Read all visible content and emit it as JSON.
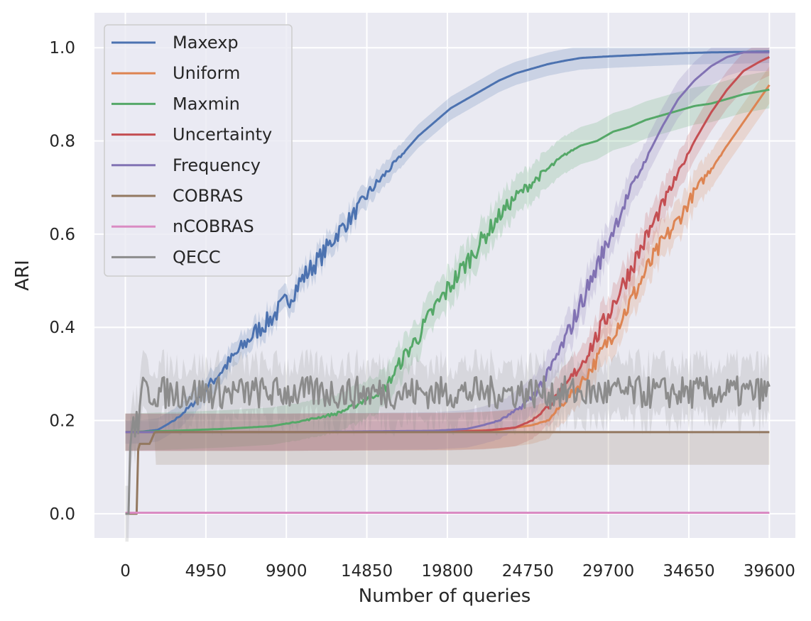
{
  "chart_data": {
    "type": "line",
    "xlabel": "Number of queries",
    "ylabel": "ARI",
    "xlim": [
      -1900,
      41200
    ],
    "ylim": [
      -0.052,
      1.075
    ],
    "xticks": [
      0,
      4950,
      9900,
      14850,
      19800,
      24750,
      29700,
      34650,
      39600
    ],
    "xtick_labels": [
      "0",
      "4950",
      "9900",
      "14850",
      "19800",
      "24750",
      "29700",
      "34650",
      "39600"
    ],
    "yticks": [
      0.0,
      0.2,
      0.4,
      0.6,
      0.8,
      1.0
    ],
    "ytick_labels": [
      "0.0",
      "0.2",
      "0.4",
      "0.6",
      "0.8",
      "1.0"
    ],
    "grid": true,
    "legend_position": "top-left",
    "background": "#eaeaf2",
    "series": [
      {
        "name": "Maxexp",
        "color": "#4c72b0",
        "x": [
          0,
          1000,
          2000,
          3000,
          4000,
          5000,
          6000,
          7000,
          8000,
          9000,
          10000,
          11000,
          12000,
          13000,
          14000,
          15000,
          16000,
          17000,
          18000,
          19000,
          20000,
          21000,
          22000,
          23000,
          24000,
          25000,
          26000,
          27000,
          28000,
          30000,
          32000,
          34000,
          36000,
          38000,
          39600
        ],
        "y": [
          0.175,
          0.176,
          0.18,
          0.2,
          0.23,
          0.27,
          0.31,
          0.35,
          0.39,
          0.42,
          0.46,
          0.51,
          0.55,
          0.6,
          0.64,
          0.69,
          0.73,
          0.77,
          0.81,
          0.84,
          0.87,
          0.89,
          0.91,
          0.93,
          0.945,
          0.955,
          0.965,
          0.972,
          0.978,
          0.982,
          0.985,
          0.988,
          0.99,
          0.991,
          0.992
        ],
        "band": 0.025
      },
      {
        "name": "Uniform",
        "color": "#dd8452",
        "x": [
          0,
          5000,
          10000,
          15000,
          20000,
          23000,
          25000,
          26000,
          27000,
          28000,
          29000,
          30000,
          31000,
          32000,
          33000,
          34000,
          35000,
          36000,
          37000,
          38000,
          39000,
          39600
        ],
        "y": [
          0.175,
          0.175,
          0.175,
          0.176,
          0.177,
          0.18,
          0.19,
          0.2,
          0.24,
          0.28,
          0.33,
          0.39,
          0.45,
          0.52,
          0.58,
          0.63,
          0.69,
          0.74,
          0.79,
          0.84,
          0.89,
          0.92
        ],
        "band": 0.04
      },
      {
        "name": "Maxmin",
        "color": "#55a868",
        "x": [
          0,
          3000,
          6000,
          9000,
          11000,
          13000,
          14000,
          15000,
          16000,
          16500,
          17000,
          18000,
          19000,
          20000,
          21000,
          22000,
          23000,
          24000,
          25000,
          26000,
          27000,
          28000,
          29000,
          30000,
          31000,
          32000,
          33000,
          34000,
          35000,
          36000,
          37000,
          38000,
          39600
        ],
        "y": [
          0.175,
          0.178,
          0.182,
          0.188,
          0.2,
          0.215,
          0.23,
          0.25,
          0.27,
          0.3,
          0.33,
          0.38,
          0.44,
          0.49,
          0.54,
          0.59,
          0.64,
          0.68,
          0.71,
          0.74,
          0.77,
          0.79,
          0.8,
          0.82,
          0.83,
          0.845,
          0.855,
          0.865,
          0.875,
          0.88,
          0.89,
          0.9,
          0.91
        ],
        "band": 0.04
      },
      {
        "name": "Uncertainty",
        "color": "#c44e52",
        "x": [
          0,
          10000,
          20000,
          22000,
          24000,
          25000,
          26000,
          27000,
          28000,
          29000,
          30000,
          31000,
          32000,
          33000,
          34000,
          35000,
          36000,
          37000,
          38000,
          39000,
          39600
        ],
        "y": [
          0.175,
          0.175,
          0.176,
          0.178,
          0.185,
          0.2,
          0.23,
          0.27,
          0.32,
          0.38,
          0.45,
          0.52,
          0.59,
          0.66,
          0.73,
          0.8,
          0.86,
          0.91,
          0.95,
          0.97,
          0.98
        ],
        "band": 0.04
      },
      {
        "name": "Frequency",
        "color": "#8172b3",
        "x": [
          0,
          10000,
          19000,
          21000,
          22000,
          23000,
          24000,
          25000,
          26000,
          27000,
          28000,
          29000,
          30000,
          31000,
          32000,
          33000,
          34000,
          35000,
          36000,
          37000,
          38000,
          39600
        ],
        "y": [
          0.175,
          0.175,
          0.178,
          0.182,
          0.19,
          0.2,
          0.22,
          0.25,
          0.3,
          0.37,
          0.45,
          0.53,
          0.61,
          0.69,
          0.76,
          0.83,
          0.89,
          0.93,
          0.96,
          0.98,
          0.99,
          0.99
        ],
        "band": 0.04
      },
      {
        "name": "COBRAS",
        "color": "#937860",
        "x": [
          0,
          500,
          700,
          800,
          1500,
          1800,
          39600
        ],
        "y": [
          0.0,
          0.0,
          0.0,
          0.15,
          0.15,
          0.175,
          0.175
        ],
        "band_lower": 0.105
      },
      {
        "name": "nCOBRAS",
        "color": "#da8bc3",
        "x": [
          0,
          39600
        ],
        "y": [
          0.002,
          0.002
        ]
      },
      {
        "name": "QECC",
        "color": "#8c8c8c",
        "mean": 0.26,
        "noise": 0.035,
        "band": 0.06
      }
    ]
  }
}
